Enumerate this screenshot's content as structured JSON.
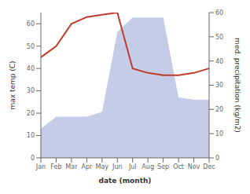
{
  "chart_data": {
    "type": "line",
    "categories": [
      "Jan",
      "Feb",
      "Mar",
      "Apr",
      "May",
      "Jun",
      "Jul",
      "Aug",
      "Sep",
      "Oct",
      "Nov",
      "Dec"
    ],
    "series": [
      {
        "type": "area",
        "axis": "y2",
        "color": "#c5cce8",
        "values": [
          12,
          17,
          17,
          17,
          19,
          52,
          58,
          58,
          58,
          25,
          24,
          24
        ]
      },
      {
        "type": "line",
        "color": "#c0392b",
        "values": [
          45,
          50,
          60,
          63,
          64,
          65,
          40,
          38,
          37,
          37,
          38,
          40
        ]
      }
    ],
    "xlabel": "date (month)",
    "ylabel": "max temp (C)",
    "y2label": "med. precipitation (kg/m2)",
    "ylim": [
      0,
      65
    ],
    "yticks": [
      0,
      10,
      20,
      30,
      40,
      50,
      60
    ],
    "y2lim": [
      0,
      60
    ],
    "y2ticks": [
      0,
      10,
      20,
      30,
      40,
      50,
      60
    ],
    "grid": false
  }
}
